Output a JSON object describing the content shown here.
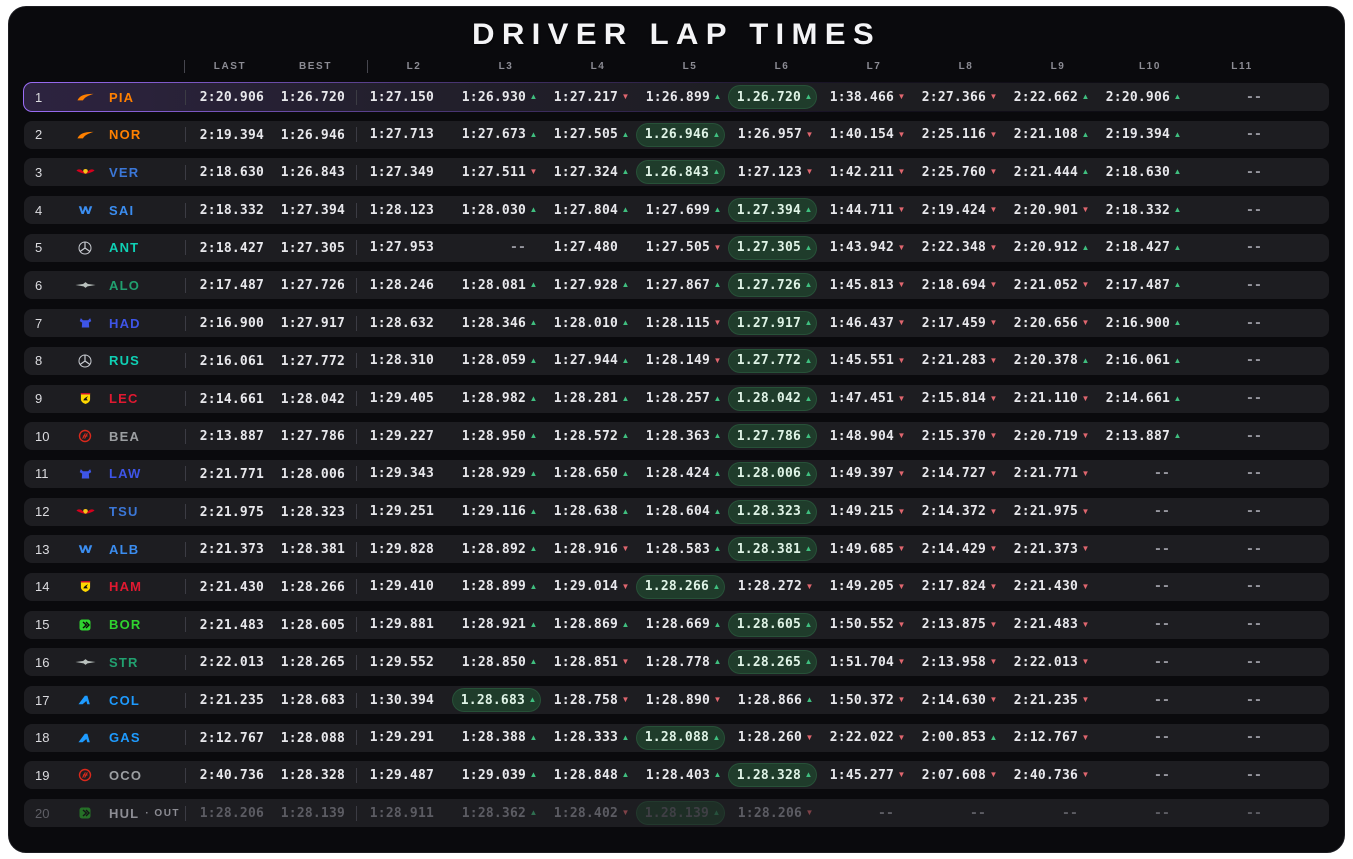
{
  "title": "DRIVER LAP TIMES",
  "columns": [
    "LAST",
    "BEST",
    "L2",
    "L3",
    "L4",
    "L5",
    "L6",
    "L7",
    "L8",
    "L9",
    "L10",
    "L11"
  ],
  "colors": {
    "up_arrow": "#3fbf7f",
    "down_arrow": "#e0666e",
    "best_pill_bg": "#1f3c2b",
    "selected_accent": "#9b6df6",
    "teams": {
      "mclaren": "#FF8000",
      "redbull": "#3b77d8",
      "williams": "#3b8df0",
      "mercedes": "#0fd0b4",
      "aston": "#21a06f",
      "racingbulls": "#3e55e8",
      "ferrari": "#e11931",
      "haas": "#9C9FA2",
      "sauber": "#2fd32f",
      "alpine": "#1e9bff"
    }
  },
  "icons": {
    "mclaren": "mclaren-logo-icon",
    "redbull": "redbull-logo-icon",
    "williams": "williams-logo-icon",
    "mercedes": "mercedes-logo-icon",
    "aston": "aston-martin-logo-icon",
    "racingbulls": "racing-bulls-logo-icon",
    "ferrari": "ferrari-logo-icon",
    "haas": "haas-logo-icon",
    "sauber": "sauber-logo-icon",
    "alpine": "alpine-logo-icon"
  },
  "rows": [
    {
      "pos": "1",
      "team": "mclaren",
      "driver": "PIA",
      "selected": true,
      "last": "2:20.906",
      "best": "1:26.720",
      "laps": [
        {
          "t": "1:27.150"
        },
        {
          "t": "1:26.930",
          "d": "up"
        },
        {
          "t": "1:27.217",
          "d": "down"
        },
        {
          "t": "1:26.899",
          "d": "up"
        },
        {
          "t": "1.26.720",
          "d": "up",
          "best": true
        },
        {
          "t": "1:38.466",
          "d": "down"
        },
        {
          "t": "2:27.366",
          "d": "down"
        },
        {
          "t": "2:22.662",
          "d": "up"
        },
        {
          "t": "2:20.906",
          "d": "up"
        },
        {
          "t": "--"
        }
      ]
    },
    {
      "pos": "2",
      "team": "mclaren",
      "driver": "NOR",
      "last": "2:19.394",
      "best": "1:26.946",
      "laps": [
        {
          "t": "1:27.713"
        },
        {
          "t": "1:27.673",
          "d": "up"
        },
        {
          "t": "1:27.505",
          "d": "up"
        },
        {
          "t": "1.26.946",
          "d": "up",
          "best": true
        },
        {
          "t": "1:26.957",
          "d": "down"
        },
        {
          "t": "1:40.154",
          "d": "down"
        },
        {
          "t": "2:25.116",
          "d": "down"
        },
        {
          "t": "2:21.108",
          "d": "up"
        },
        {
          "t": "2:19.394",
          "d": "up"
        },
        {
          "t": "--"
        }
      ]
    },
    {
      "pos": "3",
      "team": "redbull",
      "driver": "VER",
      "last": "2:18.630",
      "best": "1:26.843",
      "laps": [
        {
          "t": "1:27.349"
        },
        {
          "t": "1:27.511",
          "d": "down"
        },
        {
          "t": "1:27.324",
          "d": "up"
        },
        {
          "t": "1.26.843",
          "d": "up",
          "best": true
        },
        {
          "t": "1:27.123",
          "d": "down"
        },
        {
          "t": "1:42.211",
          "d": "down"
        },
        {
          "t": "2:25.760",
          "d": "down"
        },
        {
          "t": "2:21.444",
          "d": "up"
        },
        {
          "t": "2:18.630",
          "d": "up"
        },
        {
          "t": "--"
        }
      ]
    },
    {
      "pos": "4",
      "team": "williams",
      "driver": "SAI",
      "last": "2:18.332",
      "best": "1:27.394",
      "laps": [
        {
          "t": "1:28.123"
        },
        {
          "t": "1:28.030",
          "d": "up"
        },
        {
          "t": "1:27.804",
          "d": "up"
        },
        {
          "t": "1:27.699",
          "d": "up"
        },
        {
          "t": "1.27.394",
          "d": "up",
          "best": true
        },
        {
          "t": "1:44.711",
          "d": "down"
        },
        {
          "t": "2:19.424",
          "d": "down"
        },
        {
          "t": "2:20.901",
          "d": "down"
        },
        {
          "t": "2:18.332",
          "d": "up"
        },
        {
          "t": "--"
        }
      ]
    },
    {
      "pos": "5",
      "team": "mercedes",
      "driver": "ANT",
      "last": "2:18.427",
      "best": "1:27.305",
      "laps": [
        {
          "t": "1:27.953"
        },
        {
          "t": "--"
        },
        {
          "t": "1:27.480"
        },
        {
          "t": "1:27.505",
          "d": "down"
        },
        {
          "t": "1.27.305",
          "d": "up",
          "best": true
        },
        {
          "t": "1:43.942",
          "d": "down"
        },
        {
          "t": "2:22.348",
          "d": "down"
        },
        {
          "t": "2:20.912",
          "d": "up"
        },
        {
          "t": "2:18.427",
          "d": "up"
        },
        {
          "t": "--"
        }
      ]
    },
    {
      "pos": "6",
      "team": "aston",
      "driver": "ALO",
      "last": "2:17.487",
      "best": "1:27.726",
      "laps": [
        {
          "t": "1:28.246"
        },
        {
          "t": "1:28.081",
          "d": "up"
        },
        {
          "t": "1:27.928",
          "d": "up"
        },
        {
          "t": "1:27.867",
          "d": "up"
        },
        {
          "t": "1.27.726",
          "d": "up",
          "best": true
        },
        {
          "t": "1:45.813",
          "d": "down"
        },
        {
          "t": "2:18.694",
          "d": "down"
        },
        {
          "t": "2:21.052",
          "d": "down"
        },
        {
          "t": "2:17.487",
          "d": "up"
        },
        {
          "t": "--"
        }
      ]
    },
    {
      "pos": "7",
      "team": "racingbulls",
      "driver": "HAD",
      "last": "2:16.900",
      "best": "1:27.917",
      "laps": [
        {
          "t": "1:28.632"
        },
        {
          "t": "1:28.346",
          "d": "up"
        },
        {
          "t": "1:28.010",
          "d": "up"
        },
        {
          "t": "1:28.115",
          "d": "down"
        },
        {
          "t": "1.27.917",
          "d": "up",
          "best": true
        },
        {
          "t": "1:46.437",
          "d": "down"
        },
        {
          "t": "2:17.459",
          "d": "down"
        },
        {
          "t": "2:20.656",
          "d": "down"
        },
        {
          "t": "2:16.900",
          "d": "up"
        },
        {
          "t": "--"
        }
      ]
    },
    {
      "pos": "8",
      "team": "mercedes",
      "driver": "RUS",
      "last": "2:16.061",
      "best": "1:27.772",
      "laps": [
        {
          "t": "1:28.310"
        },
        {
          "t": "1:28.059",
          "d": "up"
        },
        {
          "t": "1:27.944",
          "d": "up"
        },
        {
          "t": "1:28.149",
          "d": "down"
        },
        {
          "t": "1.27.772",
          "d": "up",
          "best": true
        },
        {
          "t": "1:45.551",
          "d": "down"
        },
        {
          "t": "2:21.283",
          "d": "down"
        },
        {
          "t": "2:20.378",
          "d": "up"
        },
        {
          "t": "2:16.061",
          "d": "up"
        },
        {
          "t": "--"
        }
      ]
    },
    {
      "pos": "9",
      "team": "ferrari",
      "driver": "LEC",
      "last": "2:14.661",
      "best": "1:28.042",
      "laps": [
        {
          "t": "1:29.405"
        },
        {
          "t": "1:28.982",
          "d": "up"
        },
        {
          "t": "1:28.281",
          "d": "up"
        },
        {
          "t": "1:28.257",
          "d": "up"
        },
        {
          "t": "1.28.042",
          "d": "up",
          "best": true
        },
        {
          "t": "1:47.451",
          "d": "down"
        },
        {
          "t": "2:15.814",
          "d": "down"
        },
        {
          "t": "2:21.110",
          "d": "down"
        },
        {
          "t": "2:14.661",
          "d": "up"
        },
        {
          "t": "--"
        }
      ]
    },
    {
      "pos": "10",
      "team": "haas",
      "driver": "BEA",
      "last": "2:13.887",
      "best": "1:27.786",
      "laps": [
        {
          "t": "1:29.227"
        },
        {
          "t": "1:28.950",
          "d": "up"
        },
        {
          "t": "1:28.572",
          "d": "up"
        },
        {
          "t": "1:28.363",
          "d": "up"
        },
        {
          "t": "1.27.786",
          "d": "up",
          "best": true
        },
        {
          "t": "1:48.904",
          "d": "down"
        },
        {
          "t": "2:15.370",
          "d": "down"
        },
        {
          "t": "2:20.719",
          "d": "down"
        },
        {
          "t": "2:13.887",
          "d": "up"
        },
        {
          "t": "--"
        }
      ]
    },
    {
      "pos": "11",
      "team": "racingbulls",
      "driver": "LAW",
      "last": "2:21.771",
      "best": "1:28.006",
      "laps": [
        {
          "t": "1:29.343"
        },
        {
          "t": "1:28.929",
          "d": "up"
        },
        {
          "t": "1:28.650",
          "d": "up"
        },
        {
          "t": "1:28.424",
          "d": "up"
        },
        {
          "t": "1.28.006",
          "d": "up",
          "best": true
        },
        {
          "t": "1:49.397",
          "d": "down"
        },
        {
          "t": "2:14.727",
          "d": "down"
        },
        {
          "t": "2:21.771",
          "d": "down"
        },
        {
          "t": "--"
        },
        {
          "t": "--"
        }
      ]
    },
    {
      "pos": "12",
      "team": "redbull",
      "driver": "TSU",
      "last": "2:21.975",
      "best": "1:28.323",
      "laps": [
        {
          "t": "1:29.251"
        },
        {
          "t": "1:29.116",
          "d": "up"
        },
        {
          "t": "1:28.638",
          "d": "up"
        },
        {
          "t": "1:28.604",
          "d": "up"
        },
        {
          "t": "1.28.323",
          "d": "up",
          "best": true
        },
        {
          "t": "1:49.215",
          "d": "down"
        },
        {
          "t": "2:14.372",
          "d": "down"
        },
        {
          "t": "2:21.975",
          "d": "down"
        },
        {
          "t": "--"
        },
        {
          "t": "--"
        }
      ]
    },
    {
      "pos": "13",
      "team": "williams",
      "driver": "ALB",
      "last": "2:21.373",
      "best": "1:28.381",
      "laps": [
        {
          "t": "1:29.828"
        },
        {
          "t": "1:28.892",
          "d": "up"
        },
        {
          "t": "1:28.916",
          "d": "down"
        },
        {
          "t": "1:28.583",
          "d": "up"
        },
        {
          "t": "1.28.381",
          "d": "up",
          "best": true
        },
        {
          "t": "1:49.685",
          "d": "down"
        },
        {
          "t": "2:14.429",
          "d": "down"
        },
        {
          "t": "2:21.373",
          "d": "down"
        },
        {
          "t": "--"
        },
        {
          "t": "--"
        }
      ]
    },
    {
      "pos": "14",
      "team": "ferrari",
      "driver": "HAM",
      "last": "2:21.430",
      "best": "1:28.266",
      "laps": [
        {
          "t": "1:29.410"
        },
        {
          "t": "1:28.899",
          "d": "up"
        },
        {
          "t": "1:29.014",
          "d": "down"
        },
        {
          "t": "1.28.266",
          "d": "up",
          "best": true
        },
        {
          "t": "1:28.272",
          "d": "down"
        },
        {
          "t": "1:49.205",
          "d": "down"
        },
        {
          "t": "2:17.824",
          "d": "down"
        },
        {
          "t": "2:21.430",
          "d": "down"
        },
        {
          "t": "--"
        },
        {
          "t": "--"
        }
      ]
    },
    {
      "pos": "15",
      "team": "sauber",
      "driver": "BOR",
      "last": "2:21.483",
      "best": "1:28.605",
      "laps": [
        {
          "t": "1:29.881"
        },
        {
          "t": "1:28.921",
          "d": "up"
        },
        {
          "t": "1:28.869",
          "d": "up"
        },
        {
          "t": "1:28.669",
          "d": "up"
        },
        {
          "t": "1.28.605",
          "d": "up",
          "best": true
        },
        {
          "t": "1:50.552",
          "d": "down"
        },
        {
          "t": "2:13.875",
          "d": "down"
        },
        {
          "t": "2:21.483",
          "d": "down"
        },
        {
          "t": "--"
        },
        {
          "t": "--"
        }
      ]
    },
    {
      "pos": "16",
      "team": "aston",
      "driver": "STR",
      "last": "2:22.013",
      "best": "1:28.265",
      "laps": [
        {
          "t": "1:29.552"
        },
        {
          "t": "1:28.850",
          "d": "up"
        },
        {
          "t": "1:28.851",
          "d": "down"
        },
        {
          "t": "1:28.778",
          "d": "up"
        },
        {
          "t": "1.28.265",
          "d": "up",
          "best": true
        },
        {
          "t": "1:51.704",
          "d": "down"
        },
        {
          "t": "2:13.958",
          "d": "down"
        },
        {
          "t": "2:22.013",
          "d": "down"
        },
        {
          "t": "--"
        },
        {
          "t": "--"
        }
      ]
    },
    {
      "pos": "17",
      "team": "alpine",
      "driver": "COL",
      "last": "2:21.235",
      "best": "1:28.683",
      "laps": [
        {
          "t": "1:30.394"
        },
        {
          "t": "1.28.683",
          "d": "up",
          "best": true
        },
        {
          "t": "1:28.758",
          "d": "down"
        },
        {
          "t": "1:28.890",
          "d": "down"
        },
        {
          "t": "1:28.866",
          "d": "up"
        },
        {
          "t": "1:50.372",
          "d": "down"
        },
        {
          "t": "2:14.630",
          "d": "down"
        },
        {
          "t": "2:21.235",
          "d": "down"
        },
        {
          "t": "--"
        },
        {
          "t": "--"
        }
      ]
    },
    {
      "pos": "18",
      "team": "alpine",
      "driver": "GAS",
      "last": "2:12.767",
      "best": "1:28.088",
      "laps": [
        {
          "t": "1:29.291"
        },
        {
          "t": "1:28.388",
          "d": "up"
        },
        {
          "t": "1:28.333",
          "d": "up"
        },
        {
          "t": "1.28.088",
          "d": "up",
          "best": true
        },
        {
          "t": "1:28.260",
          "d": "down"
        },
        {
          "t": "2:22.022",
          "d": "down"
        },
        {
          "t": "2:00.853",
          "d": "up"
        },
        {
          "t": "2:12.767",
          "d": "down"
        },
        {
          "t": "--"
        },
        {
          "t": "--"
        }
      ]
    },
    {
      "pos": "19",
      "team": "haas",
      "driver": "OCO",
      "last": "2:40.736",
      "best": "1:28.328",
      "laps": [
        {
          "t": "1:29.487"
        },
        {
          "t": "1:29.039",
          "d": "up"
        },
        {
          "t": "1:28.848",
          "d": "up"
        },
        {
          "t": "1:28.403",
          "d": "up"
        },
        {
          "t": "1.28.328",
          "d": "up",
          "best": true
        },
        {
          "t": "1:45.277",
          "d": "down"
        },
        {
          "t": "2:07.608",
          "d": "down"
        },
        {
          "t": "2:40.736",
          "d": "down"
        },
        {
          "t": "--"
        },
        {
          "t": "--"
        }
      ]
    },
    {
      "pos": "20",
      "team": "sauber",
      "driver": "HUL",
      "status": "· OUT",
      "out": true,
      "last": "1:28.206",
      "best": "1:28.139",
      "laps": [
        {
          "t": "1:28.911"
        },
        {
          "t": "1:28.362",
          "d": "up"
        },
        {
          "t": "1:28.402",
          "d": "down"
        },
        {
          "t": "1.28.139",
          "d": "up",
          "best": true
        },
        {
          "t": "1:28.206",
          "d": "down"
        },
        {
          "t": "--"
        },
        {
          "t": "--"
        },
        {
          "t": "--"
        },
        {
          "t": "--"
        },
        {
          "t": "--"
        }
      ]
    }
  ]
}
